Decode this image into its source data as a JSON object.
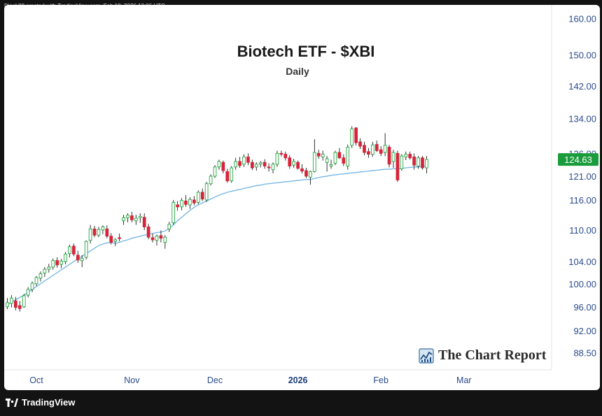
{
  "header": {
    "credit": "Djack38 created with TradingView.com, Feb 18, 2026 13:06 UTC"
  },
  "footer": {
    "brand": "TradingView"
  },
  "watermark": {
    "text": "The Chart Report",
    "icon": "chart-report-logo-icon"
  },
  "colors": {
    "up": "#26a641",
    "down": "#d6243a",
    "sma": "#7ab8e6",
    "price_tag": "#1a9c3c",
    "axis_text": "#2a4a8c"
  },
  "chart_data": {
    "type": "candlestick",
    "title": "Biotech ETF - $XBI",
    "subtitle": "Daily",
    "last_price_label": "124.63",
    "y_scale": "log",
    "ylim": [
      88.0,
      161.5
    ],
    "y_ticks": [
      "160.00",
      "150.00",
      "142.00",
      "134.00",
      "126.00",
      "121.00",
      "116.00",
      "110.00",
      "104.00",
      "100.00",
      "96.00",
      "92.00",
      "88.50"
    ],
    "x_ticks": [
      {
        "label": "Oct",
        "index": 7,
        "bold": false
      },
      {
        "label": "Nov",
        "index": 30,
        "bold": false
      },
      {
        "label": "Dec",
        "index": 50,
        "bold": false
      },
      {
        "label": "2026",
        "index": 70,
        "bold": true
      },
      {
        "label": "Feb",
        "index": 90,
        "bold": false
      },
      {
        "label": "Mar",
        "index": 110,
        "bold": false
      }
    ],
    "candles": [
      [
        96.0,
        97.5,
        95.6,
        96.7
      ],
      [
        96.6,
        98.0,
        95.9,
        97.5
      ],
      [
        97.0,
        97.7,
        95.4,
        95.9
      ],
      [
        96.2,
        97.0,
        95.2,
        95.7
      ],
      [
        96.0,
        98.2,
        95.8,
        97.9
      ],
      [
        98.0,
        99.4,
        97.6,
        99.0
      ],
      [
        99.0,
        100.4,
        98.5,
        100.1
      ],
      [
        100.0,
        101.4,
        99.6,
        101.1
      ],
      [
        101.0,
        102.2,
        100.4,
        101.8
      ],
      [
        101.9,
        103.0,
        101.2,
        102.6
      ],
      [
        102.6,
        103.6,
        102.0,
        103.0
      ],
      [
        103.0,
        104.6,
        102.5,
        104.2
      ],
      [
        104.2,
        104.8,
        102.9,
        103.4
      ],
      [
        103.5,
        104.5,
        102.8,
        104.1
      ],
      [
        104.0,
        105.8,
        103.5,
        105.4
      ],
      [
        105.5,
        107.2,
        104.8,
        106.8
      ],
      [
        106.9,
        107.4,
        105.0,
        105.4
      ],
      [
        105.2,
        106.0,
        103.8,
        104.3
      ],
      [
        104.2,
        105.2,
        103.0,
        104.6
      ],
      [
        104.8,
        108.0,
        104.4,
        107.8
      ],
      [
        108.0,
        111.0,
        107.4,
        110.2
      ],
      [
        110.2,
        110.8,
        108.6,
        109.0
      ],
      [
        109.0,
        110.6,
        108.6,
        110.1
      ],
      [
        110.0,
        110.9,
        109.2,
        110.6
      ],
      [
        110.2,
        110.9,
        108.4,
        108.8
      ],
      [
        108.8,
        109.4,
        107.2,
        107.6
      ],
      [
        107.8,
        108.4,
        106.9,
        108.1
      ],
      [
        108.5,
        109.3,
        107.8,
        108.4
      ],
      [
        111.8,
        113.0,
        111.0,
        112.4
      ],
      [
        112.4,
        113.3,
        111.5,
        112.9
      ],
      [
        112.8,
        113.6,
        111.5,
        112.0
      ],
      [
        111.8,
        113.0,
        111.0,
        112.3
      ],
      [
        112.4,
        113.3,
        111.4,
        112.7
      ],
      [
        112.5,
        113.3,
        110.0,
        110.6
      ],
      [
        110.6,
        111.2,
        108.2,
        108.6
      ],
      [
        108.5,
        109.3,
        107.6,
        108.1
      ],
      [
        108.0,
        109.1,
        107.0,
        108.8
      ],
      [
        108.9,
        109.9,
        107.6,
        108.4
      ],
      [
        107.6,
        109.0,
        106.4,
        108.6
      ],
      [
        110.2,
        111.6,
        109.6,
        111.1
      ],
      [
        111.4,
        116.0,
        111.0,
        115.5
      ],
      [
        115.0,
        115.8,
        113.8,
        114.6
      ],
      [
        114.6,
        116.4,
        113.9,
        115.9
      ],
      [
        115.8,
        117.0,
        114.6,
        115.1
      ],
      [
        115.0,
        116.6,
        114.2,
        116.1
      ],
      [
        116.0,
        116.8,
        114.9,
        115.4
      ],
      [
        115.5,
        118.0,
        115.1,
        117.6
      ],
      [
        117.6,
        118.4,
        115.8,
        116.2
      ],
      [
        116.0,
        119.8,
        115.6,
        119.4
      ],
      [
        119.4,
        121.4,
        119.0,
        121.0
      ],
      [
        121.0,
        123.4,
        120.6,
        123.0
      ],
      [
        123.0,
        124.6,
        122.4,
        124.2
      ],
      [
        124.0,
        124.4,
        121.6,
        122.2
      ],
      [
        122.0,
        122.6,
        119.6,
        120.0
      ],
      [
        120.0,
        123.2,
        119.6,
        122.8
      ],
      [
        123.0,
        125.0,
        122.4,
        124.2
      ],
      [
        124.2,
        125.2,
        122.8,
        123.3
      ],
      [
        123.6,
        125.8,
        123.0,
        125.2
      ],
      [
        125.2,
        126.0,
        123.4,
        124.0
      ],
      [
        124.0,
        124.6,
        122.3,
        122.8
      ],
      [
        123.0,
        124.0,
        122.2,
        123.6
      ],
      [
        123.6,
        124.3,
        122.9,
        123.9
      ],
      [
        124.0,
        124.7,
        122.6,
        123.2
      ],
      [
        123.0,
        123.8,
        122.0,
        122.8
      ],
      [
        122.4,
        124.0,
        121.6,
        123.6
      ],
      [
        123.6,
        126.6,
        123.0,
        126.0
      ],
      [
        126.0,
        126.6,
        125.3,
        125.8
      ],
      [
        125.8,
        126.4,
        124.4,
        125.0
      ],
      [
        125.0,
        125.6,
        122.6,
        123.2
      ],
      [
        123.4,
        124.8,
        122.8,
        124.2
      ],
      [
        124.0,
        124.4,
        122.4,
        122.7
      ],
      [
        122.6,
        123.6,
        121.6,
        122.1
      ],
      [
        122.2,
        122.8,
        120.6,
        121.0
      ],
      [
        120.8,
        122.2,
        119.2,
        122.0
      ],
      [
        122.0,
        129.2,
        121.8,
        126.2
      ],
      [
        126.0,
        126.8,
        124.8,
        125.4
      ],
      [
        125.2,
        126.6,
        124.4,
        125.8
      ],
      [
        124.0,
        125.4,
        122.0,
        124.8
      ],
      [
        123.2,
        124.6,
        122.6,
        123.5
      ],
      [
        123.8,
        126.6,
        123.4,
        126.2
      ],
      [
        126.2,
        127.2,
        124.8,
        125.0
      ],
      [
        125.0,
        125.8,
        123.2,
        123.8
      ],
      [
        123.2,
        128.0,
        122.4,
        127.4
      ],
      [
        127.8,
        132.2,
        127.2,
        131.6
      ],
      [
        131.8,
        132.0,
        127.8,
        128.4
      ],
      [
        128.6,
        129.4,
        127.0,
        127.6
      ],
      [
        127.8,
        128.6,
        125.6,
        126.2
      ],
      [
        126.4,
        127.2,
        125.0,
        125.8
      ],
      [
        125.8,
        128.6,
        125.2,
        127.9
      ],
      [
        128.0,
        128.9,
        126.3,
        126.6
      ],
      [
        126.8,
        127.6,
        125.4,
        126.0
      ],
      [
        126.2,
        130.6,
        125.4,
        127.8
      ],
      [
        127.4,
        127.9,
        122.9,
        123.6
      ],
      [
        124.2,
        126.8,
        122.8,
        126.2
      ],
      [
        126.0,
        126.6,
        119.8,
        120.2
      ],
      [
        122.6,
        125.8,
        122.2,
        125.4
      ],
      [
        125.2,
        126.4,
        124.5,
        125.8
      ],
      [
        125.8,
        126.4,
        124.6,
        125.0
      ],
      [
        125.2,
        126.0,
        122.4,
        123.4
      ],
      [
        123.2,
        125.4,
        122.6,
        125.0
      ],
      [
        125.0,
        125.4,
        122.4,
        122.8
      ],
      [
        122.8,
        125.4,
        121.6,
        124.63
      ]
    ],
    "sma": [
      96.3,
      96.8,
      97.2,
      97.6,
      98.0,
      98.5,
      99.0,
      99.5,
      100.0,
      100.5,
      101.0,
      101.5,
      102.0,
      102.5,
      103.0,
      103.5,
      104.0,
      104.5,
      105.0,
      105.5,
      106.0,
      106.5,
      107.0,
      107.3,
      107.5,
      107.6,
      107.4,
      107.6,
      107.9,
      108.1,
      108.4,
      108.6,
      108.8,
      109.0,
      109.2,
      109.3,
      109.5,
      109.6,
      109.8,
      110.3,
      111.0,
      111.8,
      112.5,
      113.2,
      113.9,
      114.5,
      115.0,
      115.4,
      115.8,
      116.2,
      116.6,
      117.0,
      117.3,
      117.6,
      117.8,
      118.0,
      118.2,
      118.4,
      118.6,
      118.8,
      119.0,
      119.1,
      119.3,
      119.4,
      119.5,
      119.6,
      119.7,
      119.8,
      119.9,
      120.0,
      120.1,
      120.2,
      120.3,
      120.3,
      120.5,
      120.7,
      120.9,
      121.0,
      121.2,
      121.3,
      121.4,
      121.5,
      121.6,
      121.7,
      121.8,
      121.9,
      122.0,
      122.1,
      122.2,
      122.3,
      122.4,
      122.5,
      122.5,
      122.6,
      122.6,
      122.7,
      122.8,
      122.9,
      123.0,
      123.0,
      123.1,
      123.2
    ]
  }
}
